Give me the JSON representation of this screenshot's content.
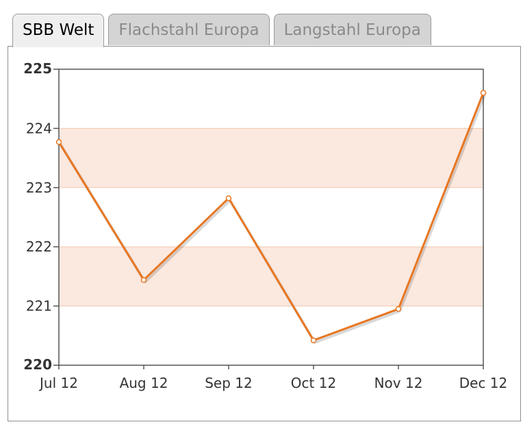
{
  "tabs": [
    {
      "label": "SBB Welt",
      "active": true
    },
    {
      "label": "Flachstahl Europa",
      "active": false
    },
    {
      "label": "Langstahl Europa",
      "active": false
    }
  ],
  "colors": {
    "line": "#e87722",
    "band": "#fbe8df",
    "band_edge": "#f6c7ad",
    "axis": "#555555"
  },
  "chart_data": {
    "type": "line",
    "title": "",
    "xlabel": "",
    "ylabel": "",
    "categories": [
      "Jul 12",
      "Aug 12",
      "Sep 12",
      "Oct 12",
      "Nov 12",
      "Dec 12"
    ],
    "series": [
      {
        "values": [
          223.77,
          221.44,
          222.82,
          220.42,
          220.95,
          224.6
        ]
      }
    ],
    "ylim": [
      220,
      225
    ],
    "yticks": [
      "220",
      "221",
      "222",
      "223",
      "224",
      "225"
    ],
    "alternating_bands": [
      [
        221,
        222
      ],
      [
        223,
        224
      ]
    ],
    "legend": "none",
    "grid": false
  }
}
